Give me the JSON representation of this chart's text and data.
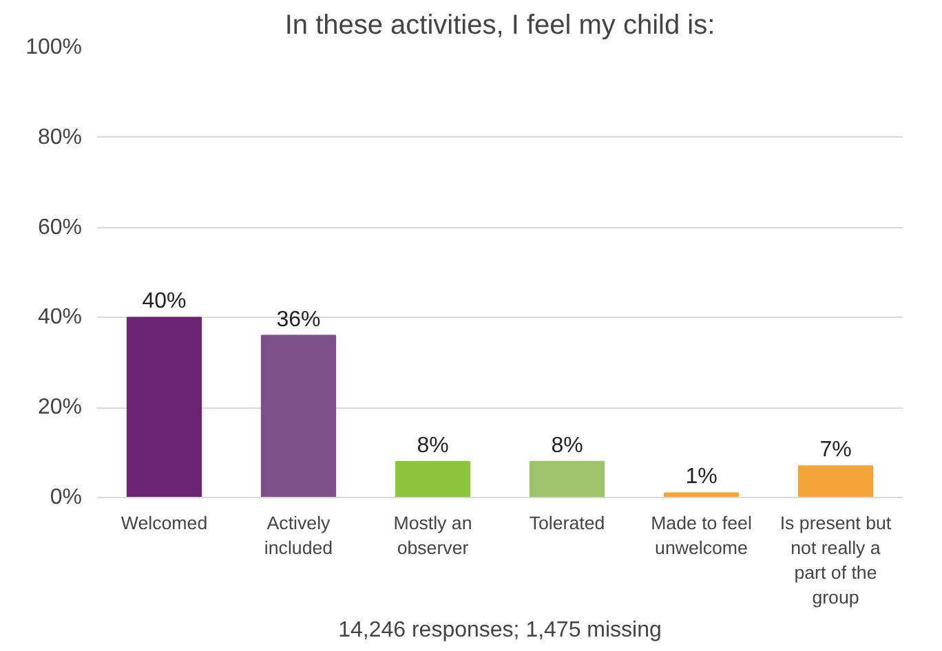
{
  "chart_data": {
    "type": "bar",
    "title": "In these activities, I feel my child is:",
    "categories": [
      "Welcomed",
      "Actively included",
      "Mostly an observer",
      "Tolerated",
      "Made to feel unwelcome",
      "Is present but not really a part of the group"
    ],
    "values": [
      40,
      36,
      8,
      8,
      1,
      7
    ],
    "colors": [
      "#6b2472",
      "#7d4f88",
      "#8cc43c",
      "#9dc46a",
      "#f5a43a",
      "#f5a43a"
    ],
    "value_labels": [
      "40%",
      "36%",
      "8%",
      "8%",
      "1%",
      "7%"
    ],
    "ylim": [
      0,
      100
    ],
    "yticks": [
      {
        "value": 0,
        "label": "0%"
      },
      {
        "value": 20,
        "label": "20%"
      },
      {
        "value": 40,
        "label": "40%"
      },
      {
        "value": 60,
        "label": "60%"
      },
      {
        "value": 80,
        "label": "80%"
      },
      {
        "value": 100,
        "label": "100%"
      }
    ],
    "grid": "y",
    "xlabel": "14,246 responses; 1,475 missing"
  }
}
